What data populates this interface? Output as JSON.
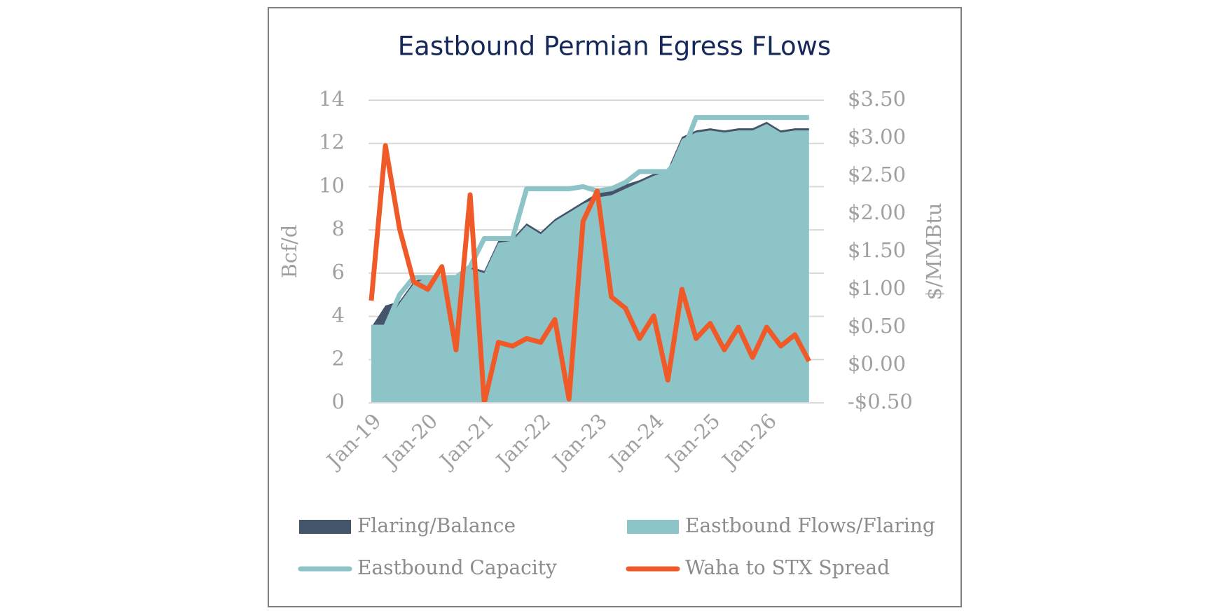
{
  "chart_data": {
    "type": "combo",
    "title": "Eastbound Permian Egress FLows",
    "y_label": "Bcf/d",
    "y2_label": "$/MMBtu",
    "categories": [
      "Jan-19",
      null,
      null,
      null,
      "Jan-20",
      null,
      null,
      null,
      "Jan-21",
      null,
      null,
      null,
      "Jan-22",
      null,
      null,
      null,
      "Jan-23",
      null,
      null,
      null,
      "Jan-24",
      null,
      null,
      null,
      "Jan-25",
      null,
      null,
      null,
      "Jan-26",
      null,
      null,
      null
    ],
    "ylim": [
      0,
      14
    ],
    "yticks": [
      0,
      2,
      4,
      6,
      8,
      10,
      12,
      14
    ],
    "y2lim": [
      -0.5,
      3.5
    ],
    "y2ticks": [
      {
        "value": -0.5,
        "label": "-$0.50"
      },
      {
        "value": 0,
        "label": "$0.00"
      },
      {
        "value": 0.5,
        "label": "$0.50"
      },
      {
        "value": 1,
        "label": "$1.00"
      },
      {
        "value": 1.5,
        "label": "$1.50"
      },
      {
        "value": 2,
        "label": "$2.00"
      },
      {
        "value": 2.5,
        "label": "$2.50"
      },
      {
        "value": 3,
        "label": "$3.00"
      },
      {
        "value": 3.5,
        "label": "$3.50"
      }
    ],
    "grid": true,
    "legend": "bottom",
    "series": [
      {
        "name": "Flaring/Balance",
        "kind": "stacked-area",
        "color": "#44546a",
        "values": [
          0.1,
          0.9,
          0.1,
          0.1,
          0.1,
          0.1,
          0.1,
          0.1,
          0.1,
          0.1,
          0.1,
          0.1,
          0.1,
          0.1,
          0.1,
          0.1,
          0.2,
          0.3,
          0.2,
          0.1,
          0.1,
          0.1,
          0.1,
          0.1,
          0.1,
          0.1,
          0.1,
          0.1,
          0.1,
          0.1,
          0.1,
          0.1
        ]
      },
      {
        "name": "Eastbound Flows/Flaring",
        "kind": "stacked-area",
        "color": "#8cc4c8",
        "values": [
          3.4,
          3.6,
          4.6,
          5.5,
          5.8,
          5.7,
          5.7,
          6.2,
          6.0,
          7.4,
          7.5,
          8.2,
          7.8,
          8.4,
          8.8,
          9.2,
          9.5,
          9.6,
          9.9,
          10.2,
          10.5,
          10.7,
          12.2,
          12.5,
          12.6,
          12.5,
          12.6,
          12.6,
          12.9,
          12.5,
          12.6,
          12.6
        ]
      },
      {
        "name": "Eastbound Capacity",
        "kind": "line",
        "color": "#8cc4c8",
        "values": [
          3.5,
          3.5,
          5.0,
          5.8,
          5.8,
          5.8,
          5.8,
          6.3,
          7.6,
          7.6,
          7.6,
          9.9,
          9.9,
          9.9,
          9.9,
          10.0,
          9.8,
          9.9,
          10.2,
          10.7,
          10.7,
          10.7,
          11.5,
          13.2,
          13.2,
          13.2,
          13.2,
          13.2,
          13.2,
          13.2,
          13.2,
          13.2
        ]
      },
      {
        "name": "Waha to STX Spread",
        "kind": "line",
        "axis": "y2",
        "color": "#f05a28",
        "values": [
          0.85,
          2.9,
          1.8,
          1.1,
          1.0,
          1.3,
          0.2,
          2.25,
          -0.5,
          0.3,
          0.25,
          0.35,
          0.3,
          0.6,
          -0.45,
          1.9,
          2.3,
          0.9,
          0.75,
          0.35,
          0.65,
          -0.2,
          1.0,
          0.35,
          0.55,
          0.2,
          0.5,
          0.1,
          0.5,
          0.25,
          0.4,
          0.05
        ]
      }
    ]
  }
}
